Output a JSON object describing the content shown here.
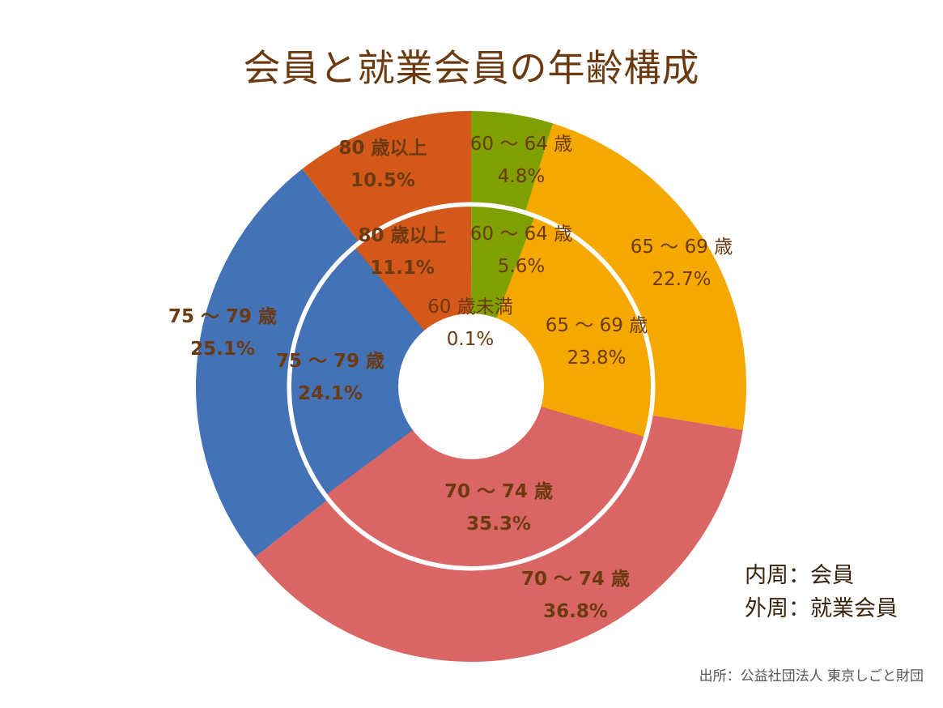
{
  "title": "会員と就業会員の年齢構成",
  "legend_note": {
    "inner": "内周：会員",
    "outer": "外周：就業会員"
  },
  "source": "出所：公益社団法人 東京しごと財団",
  "chart_data": [
    {
      "type": "pie",
      "ring": "outer",
      "ring_label": "就業会員",
      "categories": [
        "60 ～ 64 歳",
        "65 ～ 69 歳",
        "70 ～ 74 歳",
        "75 ～ 79 歳",
        "80 歳以上"
      ],
      "values": [
        4.8,
        22.7,
        36.8,
        25.1,
        10.5
      ],
      "value_labels": [
        "4.8%",
        "22.7%",
        "36.8%",
        "25.1%",
        "10.5%"
      ],
      "colors": [
        "#7fa000",
        "#f5a800",
        "#d96565",
        "#4472b6",
        "#d4581a"
      ]
    },
    {
      "type": "pie",
      "ring": "inner",
      "ring_label": "会員",
      "categories": [
        "60 歳未満",
        "60 ～ 64 歳",
        "65 ～ 69 歳",
        "70 ～ 74 歳",
        "75 ～ 79 歳",
        "80 歳以上"
      ],
      "values": [
        0.1,
        5.6,
        23.8,
        35.3,
        24.1,
        11.1
      ],
      "value_labels": [
        "0.1%",
        "5.6%",
        "23.8%",
        "35.3%",
        "24.1%",
        "11.1%"
      ],
      "colors": [
        "#8ba832",
        "#7fa000",
        "#f5a800",
        "#d96565",
        "#4472b6",
        "#d4581a"
      ]
    }
  ]
}
